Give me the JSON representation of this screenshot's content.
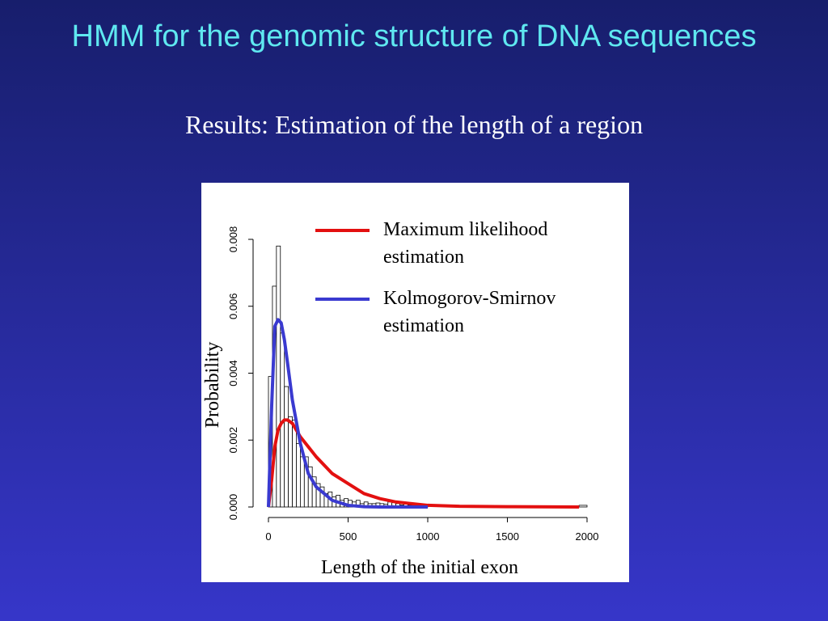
{
  "slide": {
    "title": "HMM for the genomic structure of DNA sequences",
    "subtitle": "Results: Estimation of the length of a region"
  },
  "chart_data": {
    "type": "histogram",
    "xlabel": "Length of the initial exon",
    "ylabel": "Probability",
    "bins": [
      0,
      25,
      50,
      75,
      100,
      125,
      150,
      175,
      200,
      225,
      250,
      275,
      300,
      325,
      350,
      375,
      400,
      425,
      450,
      475,
      500,
      525,
      550,
      575,
      600,
      625,
      650,
      675,
      700,
      725,
      750,
      775,
      800,
      825,
      850,
      875,
      900,
      925,
      950,
      975,
      1000,
      1950,
      2000
    ],
    "values": [
      0.0039,
      0.0066,
      0.0078,
      0.0052,
      0.0036,
      0.0027,
      0.0026,
      0.0019,
      0.0015,
      0.0015,
      0.0012,
      0.0009,
      0.0007,
      0.0006,
      0.0004,
      0.00045,
      0.0003,
      0.00035,
      0.0002,
      0.00025,
      0.0002,
      0.00015,
      0.0002,
      0.0001,
      0.00015,
      0.0001,
      0.0001,
      0.00012,
      0.0001,
      8e-05,
      0.00015,
      0.00013,
      0.0001,
      6e-05,
      0.0001,
      5e-05,
      5e-05,
      4e-05,
      3e-05,
      3e-05,
      0,
      5e-05
    ],
    "bar_fill": "#ffffff",
    "bar_edge": "#000000",
    "series": [
      {
        "name": "Maximum likelihood estimation",
        "color": "#e31010",
        "x": [
          0,
          20,
          40,
          60,
          80,
          100,
          120,
          150,
          200,
          250,
          300,
          400,
          500,
          600,
          700,
          800,
          1000,
          1200,
          1500,
          1950
        ],
        "values": [
          0,
          0.0008,
          0.0018,
          0.0023,
          0.0025,
          0.0026,
          0.0026,
          0.0025,
          0.0021,
          0.0018,
          0.0015,
          0.001,
          0.0007,
          0.0004,
          0.00025,
          0.00015,
          5e-05,
          2e-05,
          1e-05,
          0
        ]
      },
      {
        "name": "Kolmogorov-Smirnov estimation",
        "color": "#3a3ad0",
        "x": [
          0,
          20,
          40,
          60,
          80,
          100,
          120,
          150,
          200,
          250,
          300,
          400,
          500,
          600,
          700,
          800,
          1000
        ],
        "values": [
          0,
          0.003,
          0.0054,
          0.0056,
          0.0055,
          0.005,
          0.0043,
          0.0032,
          0.0019,
          0.001,
          0.0006,
          0.0002,
          5e-05,
          1e-05,
          0,
          0,
          0
        ]
      }
    ],
    "xlim": [
      0,
      2000
    ],
    "xticks": [
      0,
      500,
      1000,
      1500,
      2000
    ],
    "ylim": [
      0,
      0.008
    ],
    "yticks": [
      {
        "value": 0,
        "label": "0.000"
      },
      {
        "value": 0.002,
        "label": "0.002"
      },
      {
        "value": 0.004,
        "label": "0.004"
      },
      {
        "value": 0.006,
        "label": "0.006"
      },
      {
        "value": 0.008,
        "label": "0.008"
      }
    ],
    "legend": "top-right"
  }
}
